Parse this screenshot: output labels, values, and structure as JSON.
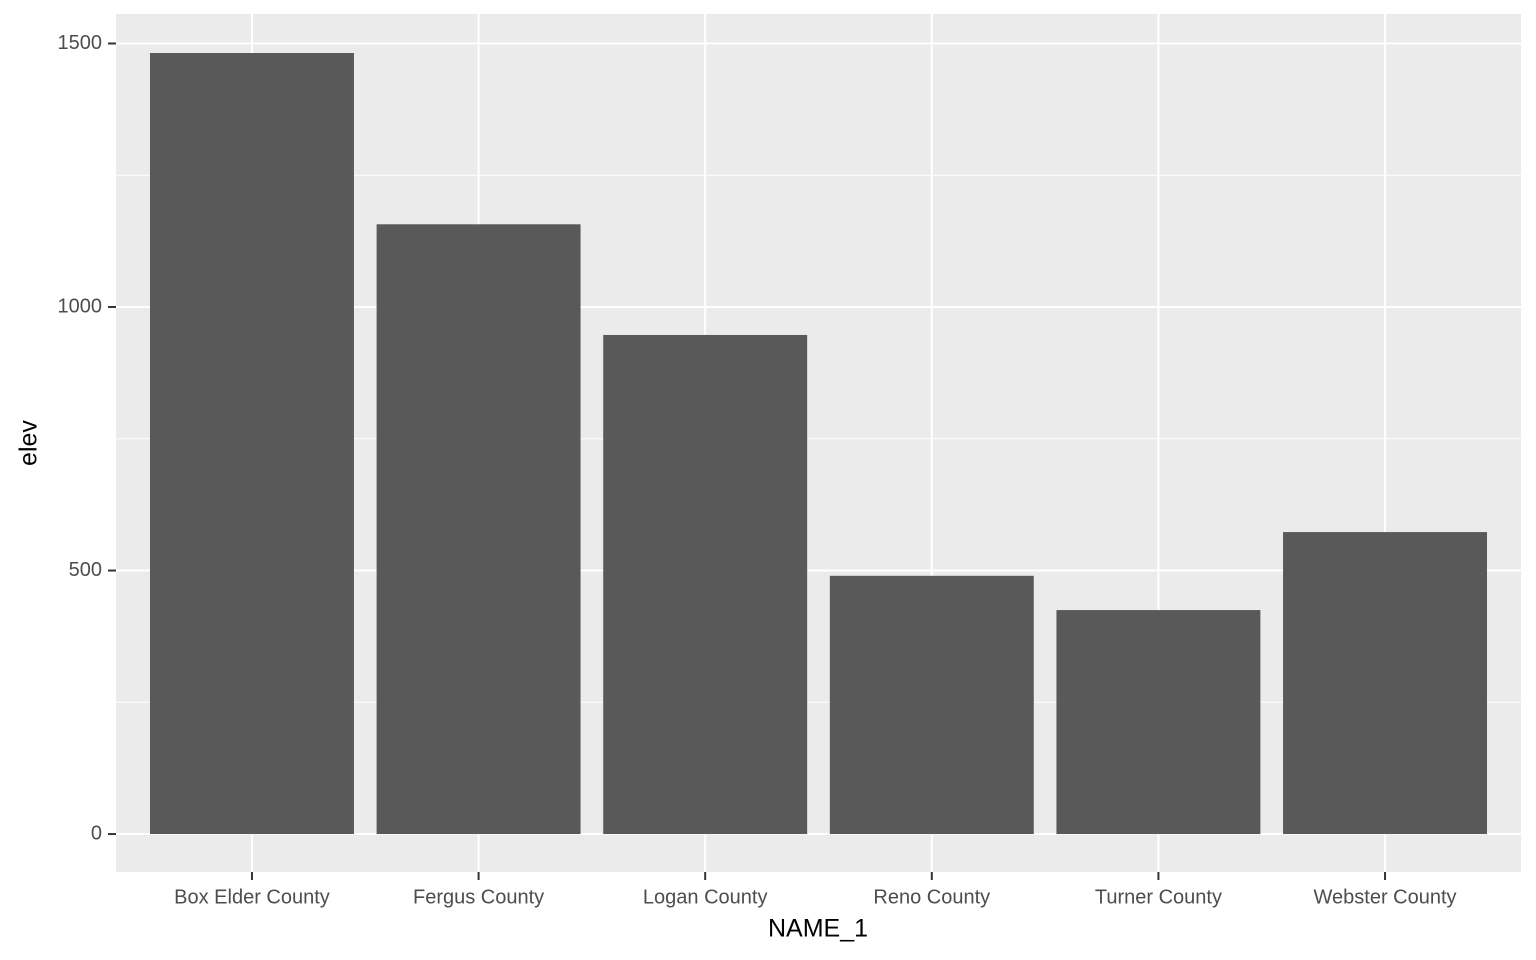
{
  "chart_data": {
    "type": "bar",
    "x_label": "NAME_1",
    "y_label": "elev",
    "categories": [
      "Box Elder County",
      "Fergus County",
      "Logan County",
      "Reno County",
      "Turner County",
      "Webster County"
    ],
    "values": [
      1482,
      1157,
      947,
      490,
      425,
      573
    ],
    "color": "#595959",
    "ylim": [
      -72,
      1556
    ],
    "yticks": [
      0,
      500,
      1000,
      1500
    ],
    "minor_yticks": [
      250,
      750,
      1250
    ],
    "grid": true
  }
}
